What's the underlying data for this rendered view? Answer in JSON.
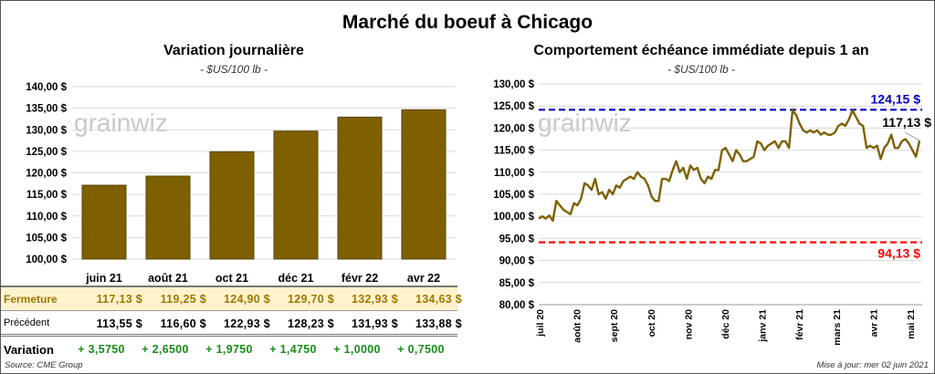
{
  "title": "Marché du boeuf à Chicago",
  "watermark": "grainwiz",
  "left": {
    "title": "Variation journalière",
    "unit": "- $US/100 lb -"
  },
  "right": {
    "title": "Comportement échéance immédiate depuis 1 an",
    "unit": "- $US/100 lb -"
  },
  "table": {
    "months": [
      "juin 21",
      "août 21",
      "oct 21",
      "déc 21",
      "févr 22",
      "avr 22"
    ],
    "rows": [
      {
        "label": "Fermeture",
        "values": [
          "117,13 $",
          "119,25 $",
          "124,90 $",
          "129,70 $",
          "132,93 $",
          "134,63 $"
        ]
      },
      {
        "label": "Précédent",
        "values": [
          "113,55 $",
          "116,60 $",
          "122,93 $",
          "128,23 $",
          "131,93 $",
          "133,88 $"
        ]
      },
      {
        "label": "Variation",
        "values": [
          "+ 3,5750",
          "+ 2,6500",
          "+ 1,9750",
          "+ 1,4750",
          "+ 1,0000",
          "+ 0,7500"
        ]
      }
    ]
  },
  "footer": {
    "source": "Source: CME Group",
    "updated": "Mise à jour: mer 02 juin 2021"
  },
  "chart_data": [
    {
      "type": "bar",
      "title": "Variation journalière",
      "categories": [
        "juin 21",
        "août 21",
        "oct 21",
        "déc 21",
        "févr 22",
        "avr 22"
      ],
      "values": [
        117.13,
        119.25,
        124.9,
        129.7,
        132.93,
        134.63
      ],
      "ylim": [
        100,
        140
      ],
      "yticks": [
        "100,00 $",
        "105,00 $",
        "110,00 $",
        "115,00 $",
        "120,00 $",
        "125,00 $",
        "130,00 $",
        "135,00 $",
        "140,00 $"
      ],
      "color": "#7f6000"
    },
    {
      "type": "line",
      "title": "Comportement échéance immédiate depuis 1 an",
      "ylim": [
        80,
        130
      ],
      "yticks": [
        "80,00 $",
        "85,00 $",
        "90,00 $",
        "95,00 $",
        "100,00 $",
        "105,00 $",
        "110,00 $",
        "115,00 $",
        "120,00 $",
        "125,00 $",
        "130,00 $"
      ],
      "xticks": [
        "juil 20",
        "août 20",
        "sept 20",
        "oct 20",
        "nov 20",
        "déc 20",
        "janv 21",
        "févr 21",
        "mars 21",
        "avr 21",
        "mai 21"
      ],
      "values": [
        99.5,
        100,
        99.5,
        100.2,
        99,
        103.5,
        102.5,
        101.5,
        101,
        100.5,
        103,
        102.5,
        104,
        107.5,
        107,
        106,
        108.5,
        105,
        105.5,
        104,
        106,
        105,
        107,
        106.5,
        108,
        108.5,
        109,
        108.5,
        110,
        109,
        108.5,
        107,
        104.5,
        103.5,
        103.5,
        108.5,
        108.5,
        108,
        110.5,
        112.5,
        110,
        111,
        108.5,
        111.5,
        110.5,
        111,
        108.5,
        107.5,
        109,
        108.5,
        110.5,
        110.5,
        115,
        115.5,
        114,
        112.5,
        115,
        114,
        112.5,
        112.5,
        113,
        113.5,
        117,
        116.5,
        115,
        116,
        116.5,
        117,
        115.5,
        117,
        117,
        115.5,
        124,
        123,
        121,
        119.5,
        119,
        119.5,
        119,
        119.5,
        118.5,
        119,
        118.5,
        118.5,
        119,
        120.5,
        121,
        120.5,
        122,
        124,
        122.5,
        121,
        120.5,
        115.5,
        116,
        115.5,
        116,
        113,
        115.5,
        116.5,
        118.5,
        115.5,
        115.5,
        117,
        117.5,
        116.5,
        115,
        113.5,
        117.13
      ],
      "color": "#7f6000",
      "max": {
        "value": 124.15,
        "label": "124,15 $",
        "color": "#0000c0"
      },
      "min": {
        "value": 94.13,
        "label": "94,13 $",
        "color": "#ff0000"
      },
      "last": {
        "value": 117.13,
        "label": "117,13 $"
      }
    }
  ]
}
